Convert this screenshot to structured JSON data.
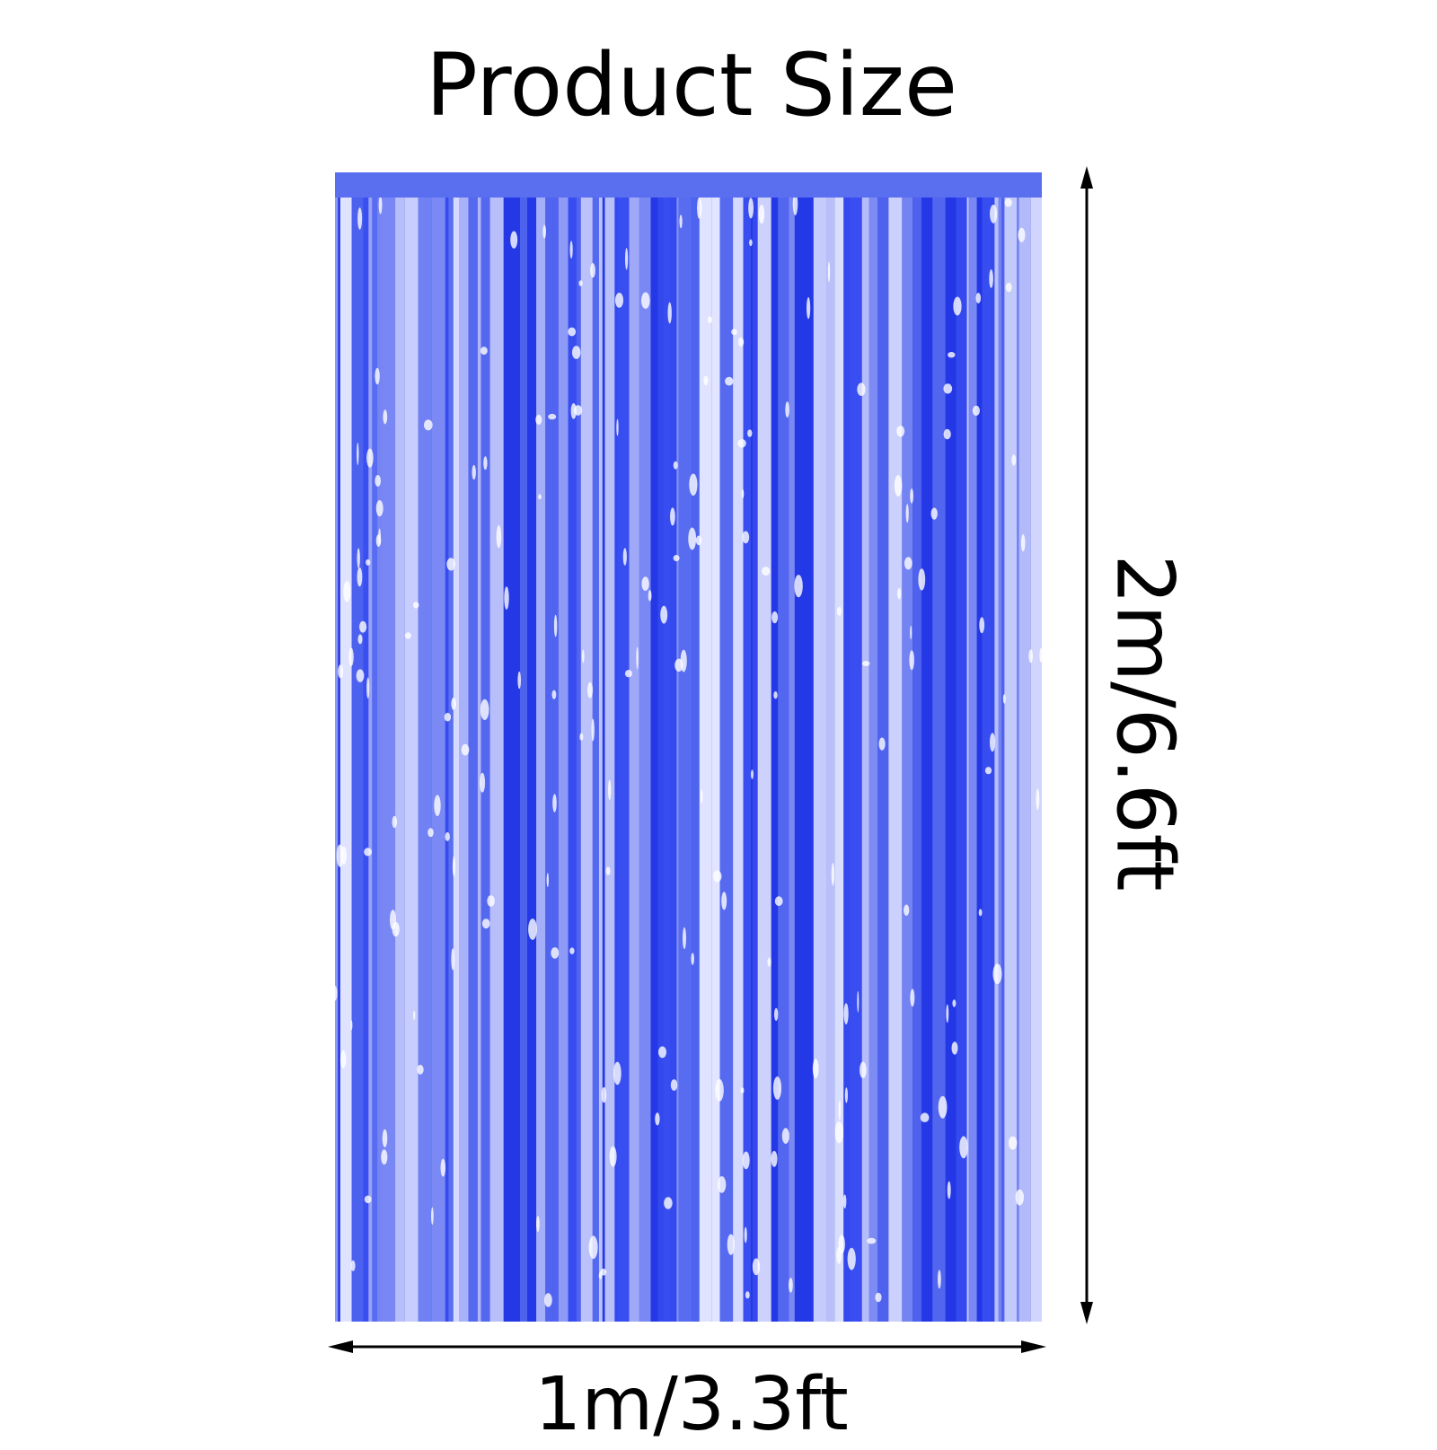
{
  "title": "Product Size",
  "height_label": "2m/6.6ft",
  "width_label": "1m/3.3ft",
  "colors": {
    "curtain_dark": "#2438e6",
    "curtain_mid": "#5a6ef0",
    "curtain_light": "#c9cffc",
    "arrow": "#000000"
  }
}
